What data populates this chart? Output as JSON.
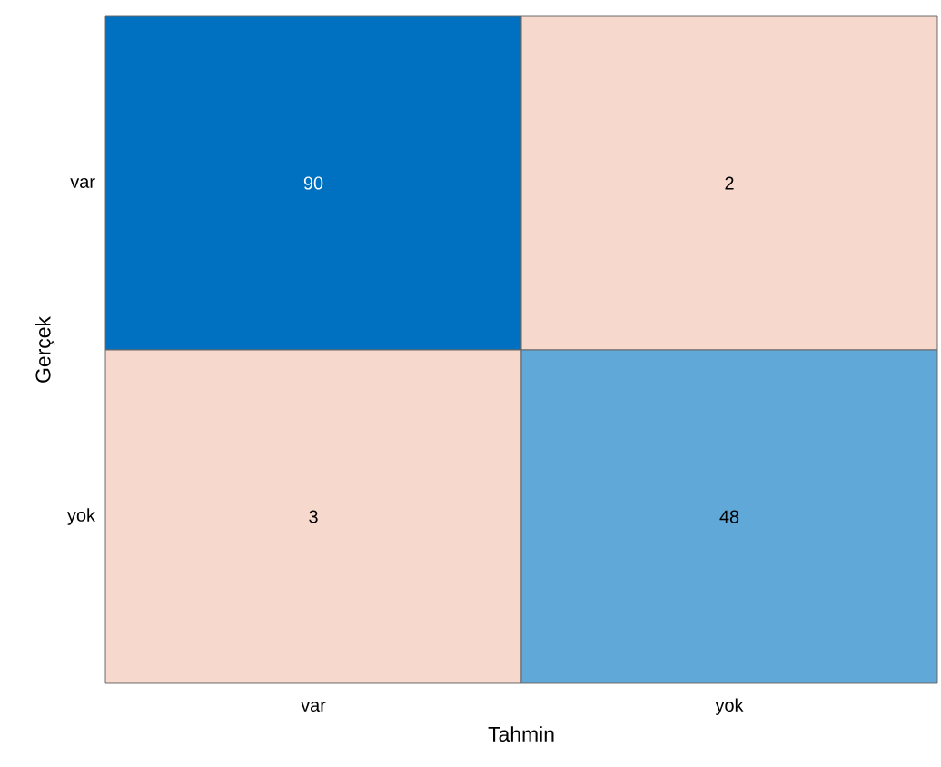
{
  "chart_data": {
    "type": "heatmap",
    "xlabel": "Tahmin",
    "ylabel": "Gerçek",
    "categories": [
      "var",
      "yok"
    ],
    "y_categories": [
      "var",
      "yok"
    ],
    "cells": [
      [
        90,
        2
      ],
      [
        3,
        48
      ]
    ],
    "colors": [
      [
        "#0070c0",
        "#f6d9cc"
      ],
      [
        "#f6d9cc",
        "#5fa8d8"
      ]
    ],
    "data_labels": true
  }
}
